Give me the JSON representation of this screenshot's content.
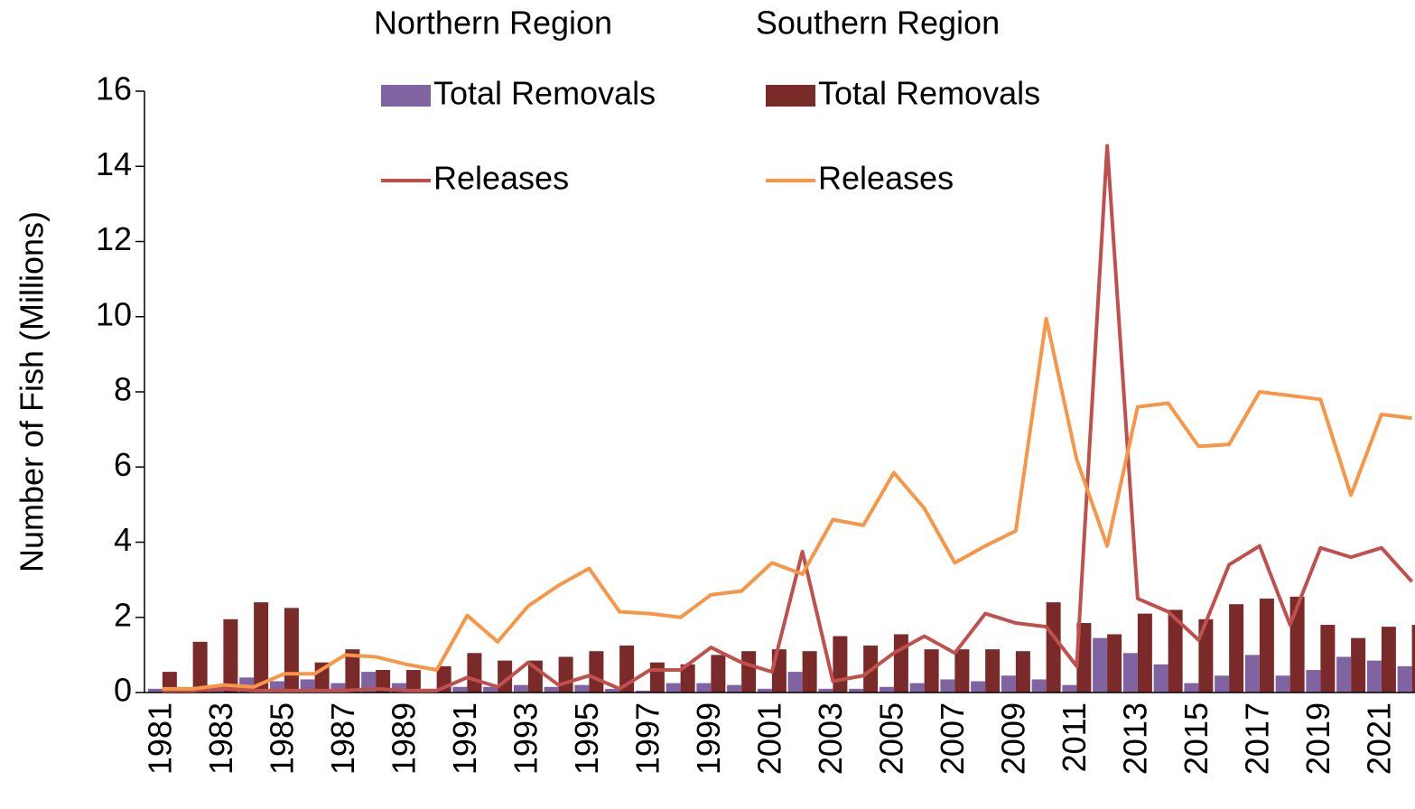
{
  "chart_data": {
    "type": "bar_line",
    "y_axis_label": "Number of Fish (Millions)",
    "legend_columns": [
      "Northern Region",
      "Southern Region"
    ],
    "categories": [
      "1981",
      null,
      "1983",
      null,
      "1985",
      null,
      "1987",
      null,
      "1989",
      null,
      "1991",
      null,
      "1993",
      null,
      "1995",
      null,
      "1997",
      null,
      "1999",
      null,
      "2001",
      null,
      "2003",
      null,
      "2005",
      null,
      "2007",
      null,
      "2009",
      null,
      "2011",
      null,
      "2013",
      null,
      "2015",
      null,
      "2017",
      null,
      "2019",
      null,
      "2021",
      null
    ],
    "series": [
      {
        "name": "Total Removals",
        "kind": "bar",
        "color": "#8064a2",
        "values": [
          0.1,
          0.1,
          0.2,
          0.4,
          0.3,
          0.35,
          0.25,
          0.55,
          0.25,
          0.1,
          0.15,
          0.15,
          0.2,
          0.15,
          0.2,
          0.1,
          0.05,
          0.25,
          0.25,
          0.2,
          0.1,
          0.55,
          0.1,
          0.1,
          0.15,
          0.25,
          0.35,
          0.3,
          0.45,
          0.35,
          0.2,
          1.45,
          1.05,
          0.75,
          0.25,
          0.45,
          1.0,
          0.45,
          0.6,
          0.95,
          0.85,
          0.7
        ]
      },
      {
        "name": "Total Removals",
        "kind": "bar",
        "color": "#7b2a2a",
        "values": [
          0.55,
          1.35,
          1.95,
          2.4,
          2.25,
          0.8,
          1.15,
          0.6,
          0.6,
          0.7,
          1.05,
          0.85,
          0.85,
          0.95,
          1.1,
          1.25,
          0.8,
          0.75,
          1.0,
          1.1,
          1.15,
          1.1,
          1.5,
          1.25,
          1.55,
          1.15,
          1.15,
          1.15,
          1.1,
          2.4,
          1.85,
          1.55,
          2.1,
          2.2,
          1.95,
          2.35,
          2.5,
          2.55,
          1.8,
          1.45,
          1.75,
          1.8
        ]
      },
      {
        "name": "Releases",
        "kind": "line",
        "color": "#c0504d",
        "values": [
          0.05,
          0.05,
          0.1,
          0.05,
          0.05,
          0.05,
          0.05,
          0.1,
          0.05,
          0.05,
          0.4,
          0.15,
          0.8,
          0.2,
          0.45,
          0.1,
          0.6,
          0.6,
          1.2,
          0.8,
          0.55,
          3.75,
          0.3,
          0.45,
          1.05,
          1.5,
          1.05,
          2.1,
          1.85,
          1.75,
          0.7,
          14.55,
          2.5,
          2.15,
          1.4,
          3.4,
          3.9,
          1.8,
          3.85,
          3.6,
          3.85,
          2.95
        ]
      },
      {
        "name": "Releases",
        "kind": "line",
        "color": "#f79646",
        "values": [
          0.1,
          0.1,
          0.2,
          0.15,
          0.5,
          0.5,
          1.0,
          0.95,
          0.75,
          0.6,
          2.05,
          1.35,
          2.3,
          2.85,
          3.3,
          2.15,
          2.1,
          2.0,
          2.6,
          2.7,
          3.45,
          3.15,
          4.6,
          4.45,
          5.85,
          4.9,
          3.45,
          3.9,
          4.3,
          9.95,
          6.2,
          3.9,
          7.6,
          7.7,
          6.55,
          6.6,
          8.0,
          7.9,
          7.8,
          5.25,
          7.4,
          7.3
        ]
      }
    ],
    "ylim": [
      0,
      16
    ],
    "yticks": [
      0,
      2,
      4,
      6,
      8,
      10,
      12,
      14,
      16
    ]
  }
}
